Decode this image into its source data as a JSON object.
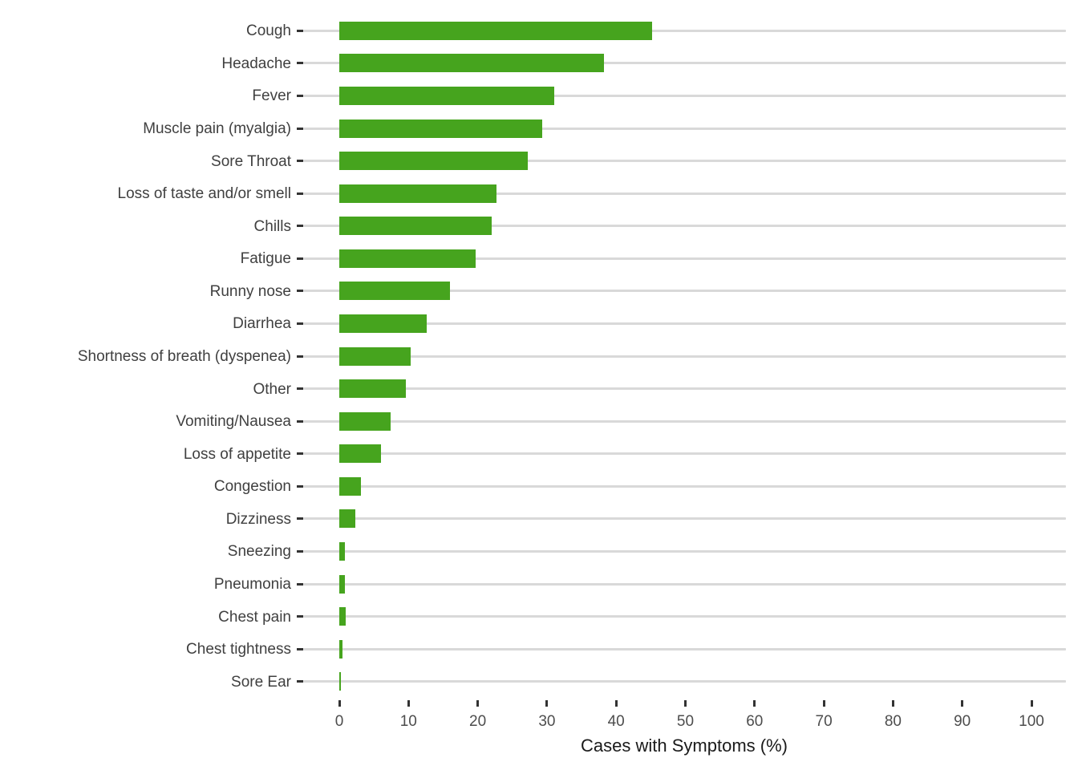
{
  "chart_data": {
    "type": "bar",
    "orientation": "horizontal",
    "title": "",
    "xlabel": "Cases with Symptoms (%)",
    "ylabel": "",
    "xlim": [
      0,
      100
    ],
    "x_ticks": [
      0,
      10,
      20,
      30,
      40,
      50,
      60,
      70,
      80,
      90,
      100
    ],
    "grid": "horizontal-row-lines-only",
    "legend": "none",
    "categories": [
      "Cough",
      "Headache",
      "Fever",
      "Muscle pain (myalgia)",
      "Sore Throat",
      "Loss of taste and/or smell",
      "Chills",
      "Fatigue",
      "Runny nose",
      "Diarrhea",
      "Shortness of breath (dyspenea)",
      "Other",
      "Vomiting/Nausea",
      "Loss of appetite",
      "Congestion",
      "Dizziness",
      "Sneezing",
      "Pneumonia",
      "Chest pain",
      "Chest tightness",
      "Sore Ear"
    ],
    "values": [
      45.2,
      38.2,
      31.0,
      29.3,
      27.2,
      22.7,
      22.0,
      19.7,
      16.0,
      12.6,
      10.3,
      9.6,
      7.4,
      6.0,
      3.1,
      2.3,
      0.8,
      0.8,
      0.9,
      0.5,
      0.2
    ],
    "colors": {
      "bar": "#46a41e",
      "gridline": "#d9d9d9",
      "tick_mark": "#333333",
      "category_label": "#404040",
      "tick_label": "#4d4d4d",
      "axis_title": "#1a1a1a",
      "background": "#ffffff"
    }
  }
}
